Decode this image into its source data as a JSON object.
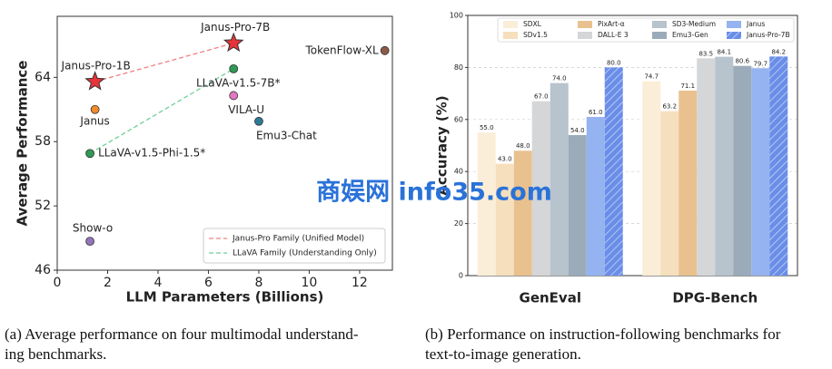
{
  "chart_data": [
    {
      "type": "scatter",
      "x_label": "LLM Parameters (Billions)",
      "y_label": "Average Performance",
      "xlim": [
        0,
        13.3
      ],
      "ylim": [
        46,
        69.7
      ],
      "xticks": [
        0,
        2,
        4,
        6,
        8,
        10,
        12
      ],
      "yticks": [
        46,
        52,
        58,
        64
      ],
      "points": [
        {
          "label": "Janus-Pro-1B",
          "x": 1.5,
          "y": 63.6,
          "color": "#e8333a",
          "marker": "star"
        },
        {
          "label": "Janus-Pro-7B",
          "x": 7,
          "y": 67.2,
          "color": "#e8333a",
          "marker": "star"
        },
        {
          "label": "TokenFlow-XL",
          "x": 13,
          "y": 66.5,
          "color": "#8c5a4a",
          "marker": "circle"
        },
        {
          "label": "LLaVA-v1.5-7B*",
          "x": 7,
          "y": 64.8,
          "color": "#2f9a56",
          "marker": "circle"
        },
        {
          "label": "VILA-U",
          "x": 7,
          "y": 62.3,
          "color": "#e377c2",
          "marker": "circle"
        },
        {
          "label": "Janus",
          "x": 1.5,
          "y": 61.0,
          "color": "#f08a2c",
          "marker": "circle"
        },
        {
          "label": "Emu3-Chat",
          "x": 8,
          "y": 59.9,
          "color": "#2c7a96",
          "marker": "circle"
        },
        {
          "label": "LLaVA-v1.5-Phi-1.5*",
          "x": 1.3,
          "y": 56.9,
          "color": "#2f9a56",
          "marker": "circle"
        },
        {
          "label": "Show-o",
          "x": 1.3,
          "y": 48.7,
          "color": "#9474b8",
          "marker": "circle"
        }
      ],
      "series": [
        {
          "name": "Janus-Pro Family (Unified Model)",
          "color": "#f08080",
          "x": [
            1.5,
            7
          ],
          "values": [
            63.6,
            67.2
          ]
        },
        {
          "name": "LLaVA Family (Understanding Only)",
          "color": "#6fcf97",
          "x": [
            1.3,
            7
          ],
          "values": [
            56.9,
            64.8
          ]
        }
      ],
      "legend": "lower right",
      "caption": [
        "(a)  Average performance on four multimodal understand-",
        "ing benchmarks."
      ]
    },
    {
      "type": "bar",
      "y_label": "Accuracy (%)",
      "categories": [
        "GenEval",
        "DPG-Bench"
      ],
      "ylim": [
        0,
        100
      ],
      "yticks": [
        0,
        20,
        40,
        60,
        80,
        100
      ],
      "grid": true,
      "series": [
        {
          "name": "SDXL",
          "color": "#fbeed8",
          "values": [
            55.0,
            74.7
          ],
          "value_labels": [
            "55.0",
            "74.7"
          ]
        },
        {
          "name": "SDv1.5",
          "color": "#f6dfbd",
          "values": [
            43.0,
            63.2
          ],
          "value_labels": [
            "43.0",
            "63.2"
          ]
        },
        {
          "name": "PixArt-α",
          "color": "#e8c18f",
          "values": [
            48.0,
            71.1
          ],
          "value_labels": [
            "48.0",
            "71.1"
          ]
        },
        {
          "name": "DALL-E 3",
          "color": "#d4d6d8",
          "values": [
            67.0,
            83.5
          ],
          "value_labels": [
            "67.0",
            "83.5"
          ]
        },
        {
          "name": "SD3-Medium",
          "color": "#b7c3cd",
          "values": [
            74.0,
            84.1
          ],
          "value_labels": [
            "74.0",
            "84.1"
          ]
        },
        {
          "name": "Emu3-Gen",
          "color": "#9babb9",
          "values": [
            54.0,
            80.6
          ],
          "value_labels": [
            "54.0",
            "80.6"
          ]
        },
        {
          "name": "Janus",
          "color": "#94b3f0",
          "values": [
            61.0,
            79.7
          ],
          "value_labels": [
            "61.0",
            "79.7"
          ]
        },
        {
          "name": "Janus-Pro-7B",
          "color": "#6a8ee8",
          "hatch": true,
          "values": [
            80.0,
            84.2
          ],
          "value_labels": [
            "80.0",
            "84.2"
          ]
        }
      ],
      "legend": "upper center",
      "caption": [
        "(b)  Performance on instruction-following benchmarks for",
        "text-to-image generation."
      ]
    }
  ],
  "watermark": "商娱网 info35.com"
}
